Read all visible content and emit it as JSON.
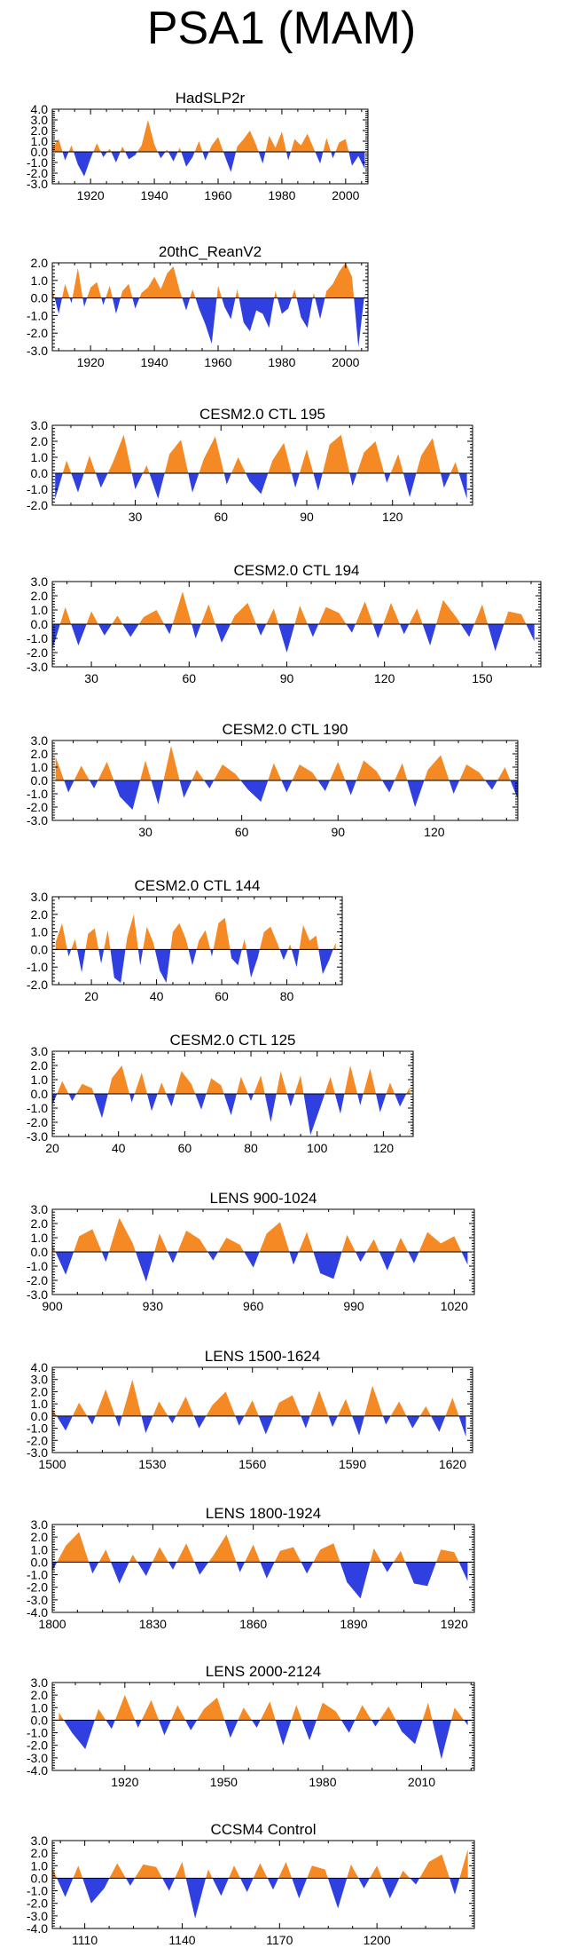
{
  "title": "PSA1 (MAM)",
  "colors": {
    "positive": "#f58a24",
    "negative": "#2f3fe0",
    "axis": "#000000"
  },
  "chart_data": [
    {
      "type": "area",
      "title": "HadSLP2r",
      "series_kind": "filled-anomaly",
      "xlim": [
        1908,
        2007
      ],
      "ylim": [
        -3.0,
        4.0
      ],
      "yticks": [
        "4.0",
        "3.0",
        "2.0",
        "1.0",
        "0.0",
        "-1.0",
        "-2.0",
        "-3.0"
      ],
      "xticks": [
        "1920",
        "1940",
        "1960",
        "1980",
        "2000"
      ],
      "x": [
        1908,
        1910,
        1912,
        1914,
        1916,
        1918,
        1920,
        1922,
        1924,
        1926,
        1928,
        1930,
        1932,
        1934,
        1936,
        1938,
        1940,
        1942,
        1944,
        1946,
        1948,
        1950,
        1952,
        1954,
        1956,
        1958,
        1960,
        1962,
        1964,
        1966,
        1968,
        1970,
        1972,
        1974,
        1976,
        1978,
        1980,
        1982,
        1984,
        1986,
        1988,
        1990,
        1992,
        1994,
        1996,
        1998,
        2000,
        2002,
        2004,
        2006
      ],
      "values": [
        0.4,
        1.2,
        -0.8,
        0.6,
        -1.2,
        -2.3,
        -0.6,
        0.8,
        -0.5,
        0.3,
        -1.0,
        0.5,
        -0.7,
        -0.3,
        0.6,
        3.0,
        0.7,
        -0.6,
        0.2,
        -0.9,
        0.4,
        -1.4,
        -0.5,
        1.0,
        -0.8,
        0.6,
        1.4,
        -0.3,
        -1.9,
        0.5,
        1.2,
        2.0,
        0.6,
        -1.1,
        1.5,
        0.4,
        1.9,
        -0.8,
        1.2,
        0.6,
        1.7,
        0.3,
        -1.1,
        1.3,
        -0.6,
        0.9,
        1.2,
        -1.3,
        -0.4,
        -1.6
      ]
    },
    {
      "type": "area",
      "title": "20thC_ReanV2",
      "series_kind": "filled-anomaly",
      "xlim": [
        1908,
        2007
      ],
      "ylim": [
        -3.0,
        2.0
      ],
      "yticks": [
        "2.0",
        "1.0",
        "0.0",
        "-1.0",
        "-2.0",
        "-3.0"
      ],
      "xticks": [
        "1920",
        "1940",
        "1960",
        "1980",
        "2000"
      ],
      "x": [
        1908,
        1910,
        1912,
        1914,
        1916,
        1918,
        1920,
        1922,
        1924,
        1926,
        1928,
        1930,
        1932,
        1934,
        1936,
        1938,
        1940,
        1942,
        1944,
        1946,
        1948,
        1950,
        1952,
        1954,
        1956,
        1958,
        1960,
        1962,
        1964,
        1966,
        1968,
        1970,
        1972,
        1974,
        1976,
        1978,
        1980,
        1982,
        1984,
        1986,
        1988,
        1990,
        1992,
        1994,
        1996,
        1998,
        2000,
        2002,
        2004,
        2006
      ],
      "values": [
        0.5,
        -0.9,
        0.8,
        -0.3,
        1.7,
        -0.5,
        0.6,
        0.9,
        -0.4,
        0.7,
        -0.9,
        0.4,
        0.8,
        -0.6,
        0.3,
        0.6,
        1.2,
        0.5,
        1.4,
        1.8,
        0.4,
        -0.7,
        0.5,
        -0.6,
        -1.5,
        -2.6,
        0.7,
        -0.5,
        -1.2,
        0.5,
        -1.4,
        -1.9,
        -0.7,
        -0.9,
        -1.7,
        0.4,
        -0.9,
        -0.6,
        0.5,
        -1.1,
        -1.7,
        0.3,
        -1.2,
        0.4,
        0.8,
        1.5,
        2.0,
        1.2,
        -2.8,
        0.3
      ]
    },
    {
      "type": "area",
      "title": "CESM2.0 CTL 195",
      "series_kind": "filled-anomaly",
      "xlim": [
        1,
        148
      ],
      "ylim": [
        -2.0,
        3.0
      ],
      "yticks": [
        "3.0",
        "2.0",
        "1.0",
        "0.0",
        "-1.0",
        "-2.0"
      ],
      "xticks": [
        "30",
        "60",
        "90",
        "120"
      ],
      "x": [
        2,
        6,
        10,
        14,
        18,
        22,
        26,
        30,
        34,
        38,
        42,
        46,
        50,
        54,
        58,
        62,
        66,
        70,
        74,
        78,
        82,
        86,
        90,
        94,
        98,
        102,
        106,
        110,
        114,
        118,
        122,
        126,
        130,
        134,
        138,
        142,
        146
      ],
      "values": [
        -1.6,
        0.8,
        -1.2,
        1.1,
        -0.9,
        0.6,
        2.4,
        -1.0,
        0.5,
        -1.6,
        1.2,
        2.1,
        -1.2,
        0.9,
        2.3,
        -0.7,
        1.0,
        -0.5,
        -1.3,
        0.8,
        1.9,
        -0.9,
        1.5,
        -1.1,
        1.8,
        2.4,
        -0.8,
        1.3,
        2.0,
        -0.6,
        1.2,
        -1.5,
        1.1,
        2.2,
        -0.9,
        0.7,
        -1.6
      ]
    },
    {
      "type": "area",
      "title": "CESM2.0 CTL 194",
      "series_kind": "filled-anomaly",
      "xlim": [
        18,
        168
      ],
      "ylim": [
        -3.0,
        3.0
      ],
      "yticks": [
        "3.0",
        "2.0",
        "1.0",
        "0.0",
        "-1.0",
        "-2.0",
        "-3.0"
      ],
      "xticks": [
        "30",
        "60",
        "90",
        "120",
        "150"
      ],
      "x": [
        18,
        22,
        26,
        30,
        34,
        38,
        42,
        46,
        50,
        54,
        58,
        62,
        66,
        70,
        74,
        78,
        82,
        86,
        90,
        94,
        98,
        102,
        106,
        110,
        114,
        118,
        122,
        126,
        130,
        134,
        138,
        142,
        146,
        150,
        154,
        158,
        162,
        166
      ],
      "values": [
        -1.8,
        1.2,
        -1.5,
        0.9,
        -0.8,
        0.6,
        -0.9,
        0.5,
        1.0,
        -0.7,
        2.3,
        -1.0,
        1.4,
        -1.3,
        0.6,
        1.5,
        -0.8,
        1.1,
        -2.0,
        1.3,
        -0.9,
        1.2,
        0.8,
        -0.6,
        1.6,
        -1.0,
        1.5,
        -0.7,
        1.1,
        -1.5,
        1.7,
        0.5,
        -0.9,
        1.4,
        -1.9,
        0.9,
        0.7,
        -1.2
      ]
    },
    {
      "type": "area",
      "title": "CESM2.0 CTL 190",
      "series_kind": "filled-anomaly",
      "xlim": [
        1,
        146
      ],
      "ylim": [
        -3.0,
        3.0
      ],
      "yticks": [
        "3.0",
        "2.0",
        "1.0",
        "0.0",
        "-1.0",
        "-2.0",
        "-3.0"
      ],
      "xticks": [
        "30",
        "60",
        "90",
        "120"
      ],
      "x": [
        2,
        6,
        10,
        14,
        18,
        22,
        26,
        30,
        34,
        38,
        42,
        46,
        50,
        54,
        58,
        62,
        66,
        70,
        74,
        78,
        82,
        86,
        90,
        94,
        98,
        102,
        106,
        110,
        114,
        118,
        122,
        126,
        130,
        134,
        138,
        142,
        146
      ],
      "values": [
        1.8,
        -0.9,
        1.1,
        -0.6,
        1.4,
        -1.2,
        -2.2,
        1.5,
        -1.8,
        2.6,
        -1.3,
        0.8,
        -0.6,
        1.2,
        0.5,
        -0.7,
        -1.6,
        1.3,
        -0.9,
        1.2,
        0.6,
        -0.8,
        1.4,
        -1.1,
        1.5,
        0.7,
        -0.9,
        1.3,
        -2.0,
        0.8,
        1.9,
        -1.0,
        1.2,
        0.6,
        -0.7,
        1.0,
        -1.4
      ]
    },
    {
      "type": "area",
      "title": "CESM2.0 CTL 144",
      "series_kind": "filled-anomaly",
      "xlim": [
        8,
        97
      ],
      "ylim": [
        -2.0,
        3.0
      ],
      "yticks": [
        "3.0",
        "2.0",
        "1.0",
        "0.0",
        "-1.0",
        "-2.0"
      ],
      "xticks": [
        "20",
        "40",
        "60",
        "80"
      ],
      "x": [
        9,
        11,
        13,
        15,
        17,
        19,
        21,
        23,
        25,
        27,
        29,
        31,
        33,
        35,
        37,
        39,
        41,
        43,
        45,
        47,
        49,
        51,
        53,
        55,
        57,
        59,
        61,
        63,
        65,
        67,
        69,
        71,
        73,
        75,
        77,
        79,
        81,
        83,
        85,
        87,
        89,
        91,
        93,
        95
      ],
      "values": [
        0.4,
        1.5,
        -0.4,
        0.6,
        -1.3,
        0.9,
        1.2,
        -0.8,
        1.1,
        -1.6,
        -1.9,
        0.7,
        2.0,
        -0.9,
        1.3,
        0.4,
        -1.2,
        -1.9,
        1.0,
        1.5,
        0.6,
        -0.9,
        0.5,
        1.1,
        -0.4,
        1.5,
        1.8,
        -0.5,
        -0.9,
        0.6,
        -1.6,
        -0.5,
        1.0,
        1.3,
        0.4,
        -0.6,
        0.3,
        -1.0,
        1.4,
        0.5,
        0.8,
        -1.4,
        -0.6,
        0.4
      ]
    },
    {
      "type": "area",
      "title": "CESM2.0 CTL 125",
      "series_kind": "filled-anomaly",
      "xlim": [
        20,
        129
      ],
      "ylim": [
        -3.0,
        3.0
      ],
      "yticks": [
        "3.0",
        "2.0",
        "1.0",
        "0.0",
        "-1.0",
        "-2.0",
        "-3.0"
      ],
      "xticks": [
        "20",
        "40",
        "60",
        "80",
        "100",
        "120"
      ],
      "x": [
        20,
        23,
        26,
        29,
        32,
        35,
        38,
        41,
        44,
        47,
        50,
        53,
        56,
        59,
        62,
        65,
        68,
        71,
        74,
        77,
        80,
        83,
        86,
        89,
        92,
        95,
        98,
        101,
        104,
        107,
        110,
        113,
        116,
        119,
        122,
        125,
        128
      ],
      "values": [
        -0.8,
        0.9,
        -0.5,
        0.7,
        0.4,
        -1.7,
        1.1,
        2.0,
        -0.6,
        1.5,
        -1.2,
        0.8,
        -0.9,
        1.6,
        0.7,
        -1.1,
        1.1,
        0.6,
        -1.5,
        1.2,
        -0.5,
        1.3,
        -2.0,
        1.6,
        -0.9,
        1.3,
        -2.9,
        -0.9,
        1.2,
        -1.4,
        2.0,
        -0.8,
        1.8,
        -1.3,
        0.8,
        -0.9,
        0.5
      ]
    },
    {
      "type": "area",
      "title": "LENS 900-1024",
      "series_kind": "filled-anomaly",
      "xlim": [
        900,
        1026
      ],
      "ylim": [
        -3.0,
        3.0
      ],
      "yticks": [
        "3.0",
        "2.0",
        "1.0",
        "0.0",
        "-1.0",
        "-2.0",
        "-3.0"
      ],
      "xticks": [
        "900",
        "930",
        "960",
        "990",
        "1020"
      ],
      "x": [
        900,
        904,
        908,
        912,
        916,
        920,
        924,
        928,
        932,
        936,
        940,
        944,
        948,
        952,
        956,
        960,
        964,
        968,
        972,
        976,
        980,
        984,
        988,
        992,
        996,
        1000,
        1004,
        1008,
        1012,
        1016,
        1020,
        1024
      ],
      "values": [
        0.5,
        -1.6,
        1.1,
        1.6,
        -0.7,
        2.4,
        0.6,
        -2.1,
        1.3,
        -0.8,
        1.5,
        0.9,
        -0.6,
        1.0,
        0.5,
        -1.1,
        1.3,
        2.1,
        -0.9,
        1.4,
        -1.5,
        -1.9,
        1.2,
        -0.7,
        0.9,
        -1.3,
        1.0,
        -0.8,
        1.4,
        0.6,
        1.1,
        -0.9
      ]
    },
    {
      "type": "area",
      "title": "LENS 1500-1624",
      "series_kind": "filled-anomaly",
      "xlim": [
        1500,
        1626
      ],
      "ylim": [
        -3.0,
        4.0
      ],
      "yticks": [
        "4.0",
        "3.0",
        "2.0",
        "1.0",
        "0.0",
        "-1.0",
        "-2.0",
        "-3.0"
      ],
      "xticks": [
        "1500",
        "1530",
        "1560",
        "1590",
        "1620"
      ],
      "x": [
        1500,
        1504,
        1508,
        1512,
        1516,
        1520,
        1524,
        1528,
        1532,
        1536,
        1540,
        1544,
        1548,
        1552,
        1556,
        1560,
        1564,
        1568,
        1572,
        1576,
        1580,
        1584,
        1588,
        1592,
        1596,
        1600,
        1604,
        1608,
        1612,
        1616,
        1620,
        1624
      ],
      "values": [
        0.6,
        -1.2,
        1.1,
        -0.7,
        2.2,
        -0.9,
        3.0,
        -1.4,
        1.2,
        -0.6,
        1.6,
        -1.0,
        0.9,
        2.0,
        -0.8,
        1.3,
        -1.5,
        1.1,
        1.7,
        -1.0,
        2.1,
        -0.9,
        1.4,
        -1.6,
        2.5,
        -0.7,
        1.2,
        -1.0,
        0.8,
        -1.3,
        1.5,
        -1.7
      ]
    },
    {
      "type": "area",
      "title": "LENS 1800-1924",
      "series_kind": "filled-anomaly",
      "xlim": [
        1800,
        1926
      ],
      "ylim": [
        -4.0,
        3.0
      ],
      "yticks": [
        "3.0",
        "2.0",
        "1.0",
        "0.0",
        "-1.0",
        "-2.0",
        "-3.0",
        "-4.0"
      ],
      "xticks": [
        "1800",
        "1830",
        "1860",
        "1890",
        "1920"
      ],
      "x": [
        1800,
        1804,
        1808,
        1812,
        1816,
        1820,
        1824,
        1828,
        1832,
        1836,
        1840,
        1844,
        1848,
        1852,
        1856,
        1860,
        1864,
        1868,
        1872,
        1876,
        1880,
        1884,
        1888,
        1892,
        1896,
        1900,
        1904,
        1908,
        1912,
        1916,
        1920,
        1924
      ],
      "values": [
        -0.7,
        1.3,
        2.4,
        -0.9,
        1.0,
        -1.7,
        0.6,
        -1.1,
        1.2,
        -0.6,
        1.5,
        -1.0,
        0.5,
        2.2,
        -0.8,
        1.4,
        -1.3,
        0.9,
        1.2,
        -0.9,
        1.0,
        1.5,
        -1.6,
        -2.9,
        1.1,
        -0.8,
        0.9,
        -1.7,
        -1.9,
        1.0,
        0.8,
        -1.5
      ]
    },
    {
      "type": "area",
      "title": "LENS 2000-2124",
      "series_kind": "filled-anomaly",
      "xlim": [
        1898,
        2026
      ],
      "ylim": [
        -4.0,
        3.0
      ],
      "yticks": [
        "3.0",
        "2.0",
        "1.0",
        "0.0",
        "-1.0",
        "-2.0",
        "-3.0",
        "-4.0"
      ],
      "xticks": [
        "1920",
        "1950",
        "1980",
        "2010"
      ],
      "x": [
        1900,
        1904,
        1908,
        1912,
        1916,
        1920,
        1924,
        1928,
        1932,
        1936,
        1940,
        1944,
        1948,
        1952,
        1956,
        1960,
        1964,
        1968,
        1972,
        1976,
        1980,
        1984,
        1988,
        1992,
        1996,
        2000,
        2004,
        2008,
        2012,
        2016,
        2020,
        2024
      ],
      "values": [
        0.6,
        -1.0,
        -2.3,
        0.9,
        -0.7,
        2.0,
        -0.6,
        1.6,
        -1.2,
        1.2,
        -0.8,
        0.9,
        1.8,
        -1.4,
        1.0,
        -0.6,
        1.5,
        -2.0,
        1.2,
        -1.6,
        1.4,
        0.7,
        -1.0,
        1.2,
        -0.5,
        1.1,
        -0.9,
        -1.9,
        1.4,
        -3.1,
        1.0,
        -0.4
      ]
    },
    {
      "type": "area",
      "title": "CCSM4 Control",
      "series_kind": "filled-anomaly",
      "xlim": [
        1100,
        1230
      ],
      "ylim": [
        -4.0,
        3.0
      ],
      "yticks": [
        "3.0",
        "2.0",
        "1.0",
        "0.0",
        "-1.0",
        "-2.0",
        "-3.0",
        "-4.0"
      ],
      "xticks": [
        "1110",
        "1140",
        "1170",
        "1200"
      ],
      "x": [
        1100,
        1104,
        1108,
        1112,
        1116,
        1120,
        1124,
        1128,
        1132,
        1136,
        1140,
        1144,
        1148,
        1152,
        1156,
        1160,
        1164,
        1168,
        1172,
        1176,
        1180,
        1184,
        1188,
        1192,
        1196,
        1200,
        1204,
        1208,
        1212,
        1216,
        1220,
        1224,
        1228
      ],
      "values": [
        0.8,
        -1.5,
        1.0,
        -2.0,
        -0.8,
        1.2,
        -0.6,
        1.1,
        0.9,
        -1.0,
        1.3,
        -3.2,
        0.7,
        -1.4,
        1.0,
        -1.1,
        1.2,
        -0.9,
        1.3,
        -1.6,
        1.0,
        0.7,
        -2.4,
        1.1,
        -0.8,
        1.0,
        -1.6,
        0.6,
        -0.5,
        1.3,
        1.9,
        -1.3,
        2.3
      ]
    }
  ]
}
